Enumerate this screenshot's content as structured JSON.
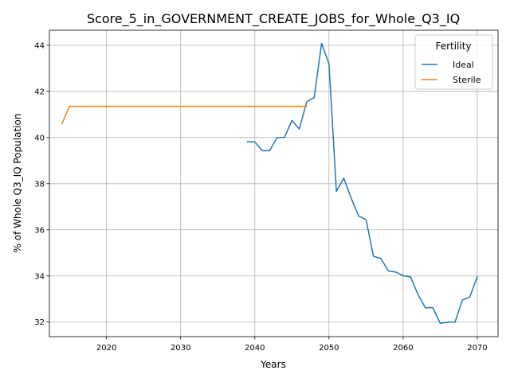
{
  "chart_data": {
    "type": "line",
    "title": "Score_5_in_GOVERNMENT_CREATE_JOBS_for_Whole_Q3_IQ",
    "xlabel": "Years",
    "ylabel": "% of Whole Q3_IQ Population",
    "xlim": [
      2012.3,
      2072.8
    ],
    "ylim": [
      31.37,
      44.65
    ],
    "xticks": [
      2020,
      2030,
      2040,
      2050,
      2060,
      2070
    ],
    "yticks": [
      32,
      34,
      36,
      38,
      40,
      42,
      44
    ],
    "grid": true,
    "legend": {
      "title": "Fertility",
      "position": "top-right"
    },
    "series": [
      {
        "name": "Ideal",
        "color": "#1f77b4",
        "x": [
          2039,
          2040,
          2041,
          2042,
          2043,
          2044,
          2045,
          2046,
          2047,
          2048,
          2049,
          2050,
          2051,
          2052,
          2053,
          2054,
          2055,
          2056,
          2057,
          2058,
          2059,
          2060,
          2061,
          2062,
          2063,
          2064,
          2065,
          2066,
          2067,
          2068,
          2069,
          2070
        ],
        "y": [
          39.82,
          39.81,
          39.43,
          39.43,
          40.0,
          40.0,
          40.74,
          40.37,
          41.55,
          41.73,
          44.08,
          43.19,
          37.67,
          38.24,
          37.37,
          36.6,
          36.44,
          34.85,
          34.76,
          34.22,
          34.17,
          34.01,
          33.96,
          33.2,
          32.62,
          32.63,
          31.95,
          31.99,
          32.01,
          32.96,
          33.09,
          33.97
        ]
      },
      {
        "name": "Sterile",
        "color": "#ff7f0e",
        "x": [
          2014,
          2015,
          2016,
          2017,
          2018,
          2019,
          2020,
          2021,
          2022,
          2023,
          2024,
          2025,
          2026,
          2027,
          2028,
          2029,
          2030,
          2031,
          2032,
          2033,
          2034,
          2035,
          2036,
          2037,
          2038,
          2039,
          2040,
          2041,
          2042,
          2043,
          2044,
          2045,
          2046,
          2047
        ],
        "y": [
          40.6,
          41.35,
          41.35,
          41.35,
          41.35,
          41.35,
          41.35,
          41.35,
          41.35,
          41.35,
          41.35,
          41.35,
          41.35,
          41.35,
          41.35,
          41.35,
          41.35,
          41.35,
          41.35,
          41.35,
          41.35,
          41.35,
          41.35,
          41.35,
          41.35,
          41.35,
          41.35,
          41.35,
          41.35,
          41.35,
          41.35,
          41.35,
          41.35,
          41.35
        ]
      }
    ]
  }
}
